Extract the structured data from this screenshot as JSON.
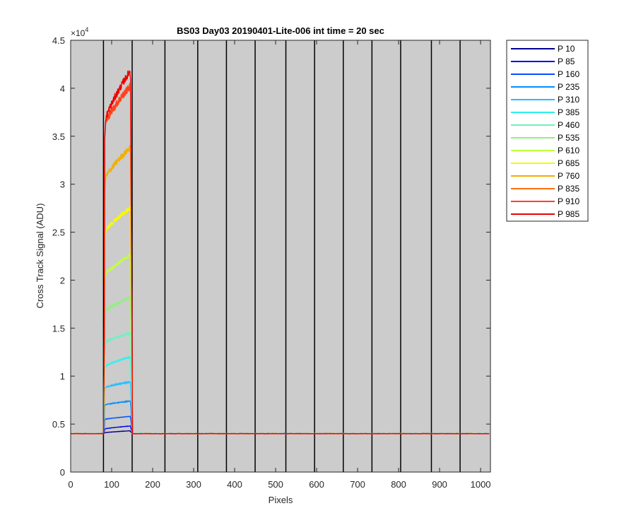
{
  "chart_data": {
    "type": "line",
    "title": "BS03 Day03 20190401-Lite-006 int time = 20 sec",
    "xlabel": "Pixels",
    "ylabel": "Cross Track Signal (ADU)",
    "exponent_label": "×10",
    "exponent_power": "4",
    "xlim": [
      0,
      1024
    ],
    "ylim": [
      0,
      45000
    ],
    "x_ticks": [
      0,
      100,
      200,
      300,
      400,
      500,
      600,
      700,
      800,
      900,
      1000
    ],
    "x_tick_labels": [
      "0",
      "100",
      "200",
      "300",
      "400",
      "500",
      "600",
      "700",
      "800",
      "900",
      "1000"
    ],
    "y_ticks": [
      0,
      5000,
      10000,
      15000,
      20000,
      25000,
      30000,
      35000,
      40000,
      45000
    ],
    "y_tick_labels": [
      "0",
      "0.5",
      "1",
      "1.5",
      "2",
      "2.5",
      "3",
      "3.5",
      "4",
      "4.5"
    ],
    "background": "#cccccc",
    "grid": false,
    "legend_position": "outside-top-right",
    "vertical_lines_x": [
      80,
      150,
      230,
      310,
      380,
      450,
      525,
      595,
      665,
      735,
      805,
      880,
      950
    ],
    "baseline": 4000,
    "plateau_range": [
      83,
      145
    ],
    "series": [
      {
        "name": "P 10",
        "color": "#00008f",
        "start": 4100,
        "end": 4300
      },
      {
        "name": "P 85",
        "color": "#0000ee",
        "start": 4500,
        "end": 4800
      },
      {
        "name": "P 160",
        "color": "#0050ff",
        "start": 5500,
        "end": 5800
      },
      {
        "name": "P 235",
        "color": "#0090ff",
        "start": 7000,
        "end": 7400
      },
      {
        "name": "P 310",
        "color": "#20c0ff",
        "start": 8800,
        "end": 9400
      },
      {
        "name": "P 385",
        "color": "#30f0f0",
        "start": 11000,
        "end": 12000
      },
      {
        "name": "P 460",
        "color": "#70f0c0",
        "start": 13500,
        "end": 14500
      },
      {
        "name": "P 535",
        "color": "#90f080",
        "start": 16700,
        "end": 18200
      },
      {
        "name": "P 610",
        "color": "#c0ff40",
        "start": 20500,
        "end": 22600
      },
      {
        "name": "P 685",
        "color": "#f8f800",
        "start": 25000,
        "end": 27500
      },
      {
        "name": "P 760",
        "color": "#f0b000",
        "start": 30500,
        "end": 33800
      },
      {
        "name": "P 835",
        "color": "#ff7010",
        "start": 36200,
        "end": 40200
      },
      {
        "name": "P 910",
        "color": "#ff4020",
        "start": 36200,
        "end": 40200
      },
      {
        "name": "P 985",
        "color": "#ee0000",
        "start": 36500,
        "end": 41800
      }
    ]
  }
}
